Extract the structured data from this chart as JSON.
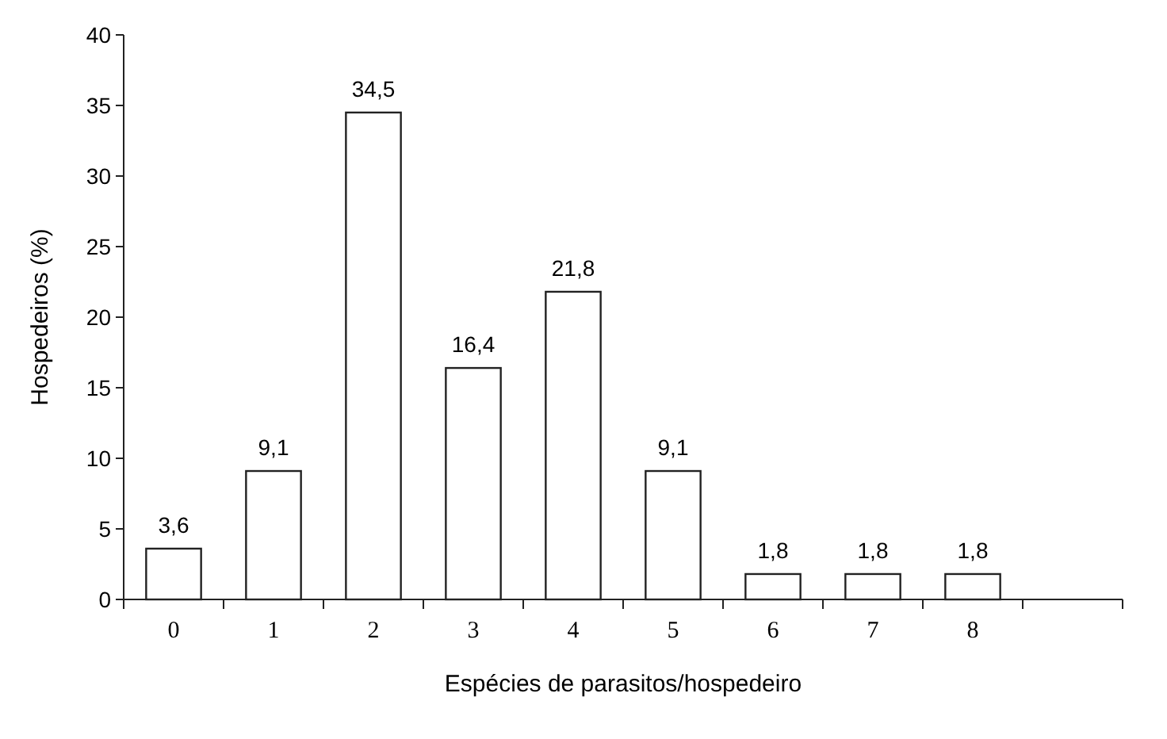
{
  "chart_data": {
    "type": "bar",
    "xlabel": "Espécies de parasitos/hospedeiro",
    "ylabel": "Hospedeiros (%)",
    "categories": [
      "0",
      "1",
      "2",
      "3",
      "4",
      "5",
      "6",
      "7",
      "8"
    ],
    "values": [
      3.6,
      9.1,
      34.5,
      16.4,
      21.8,
      9.1,
      1.8,
      1.8,
      1.8
    ],
    "value_labels": [
      "3,6",
      "9,1",
      "34,5",
      "16,4",
      "21,8",
      "9,1",
      "1,8",
      "1,8",
      "1,8"
    ],
    "color": "#ffffff",
    "ylim": [
      0,
      40
    ],
    "yticks": [
      0,
      5,
      10,
      15,
      20,
      25,
      30,
      35,
      40
    ],
    "grid": false
  }
}
